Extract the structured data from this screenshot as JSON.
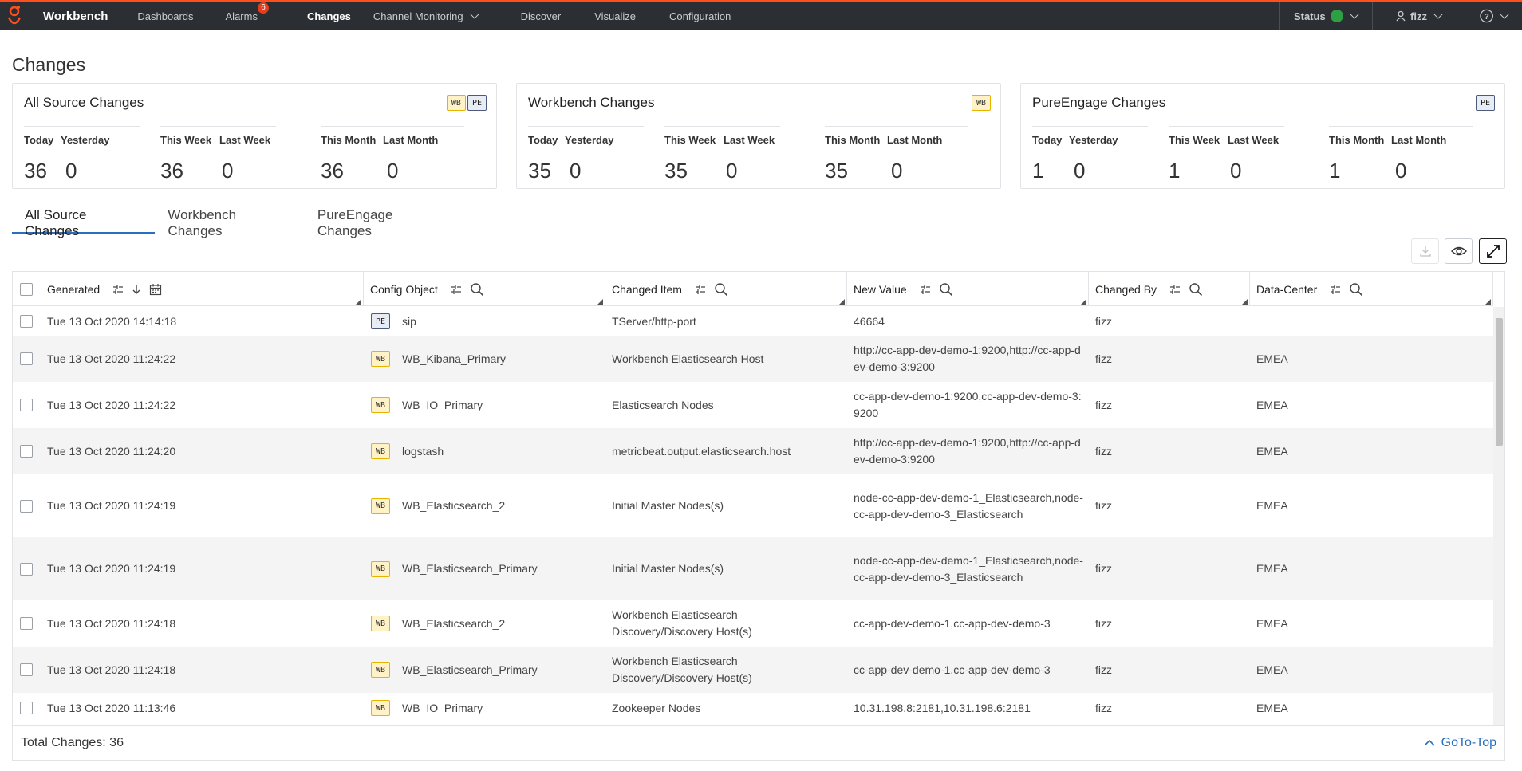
{
  "nav": {
    "brand": "Workbench",
    "items": [
      {
        "label": "Dashboards"
      },
      {
        "label": "Alarms",
        "badge": "6"
      },
      {
        "label": "Changes",
        "active": true
      },
      {
        "label": "Channel Monitoring",
        "dropdown": true
      },
      {
        "label": "Discover"
      },
      {
        "label": "Visualize"
      },
      {
        "label": "Configuration"
      }
    ],
    "status_label": "Status",
    "status_color": "#2ea043",
    "user": "fizz"
  },
  "page_title": "Changes",
  "cards": [
    {
      "title": "All Source Changes",
      "badges": [
        "WB",
        "PE"
      ],
      "today_label": "Today",
      "yesterday_label": "Yesterday",
      "today": "36",
      "yesterday": "0",
      "this_week_label": "This Week",
      "last_week_label": "Last Week",
      "this_week": "36",
      "last_week": "0",
      "this_month_label": "This Month",
      "last_month_label": "Last Month",
      "this_month": "36",
      "last_month": "0"
    },
    {
      "title": "Workbench Changes",
      "badges": [
        "WB"
      ],
      "today_label": "Today",
      "yesterday_label": "Yesterday",
      "today": "35",
      "yesterday": "0",
      "this_week_label": "This Week",
      "last_week_label": "Last Week",
      "this_week": "35",
      "last_week": "0",
      "this_month_label": "This Month",
      "last_month_label": "Last Month",
      "this_month": "35",
      "last_month": "0"
    },
    {
      "title": "PureEngage Changes",
      "badges": [
        "PE"
      ],
      "today_label": "Today",
      "yesterday_label": "Yesterday",
      "today": "1",
      "yesterday": "0",
      "this_week_label": "This Week",
      "last_week_label": "Last Week",
      "this_week": "1",
      "last_week": "0",
      "this_month_label": "This Month",
      "last_month_label": "Last Month",
      "this_month": "1",
      "last_month": "0"
    }
  ],
  "tabs": [
    {
      "label": "All Source Changes",
      "active": true
    },
    {
      "label": "Workbench Changes"
    },
    {
      "label": "PureEngage Changes"
    }
  ],
  "table": {
    "columns": [
      "Generated",
      "Config Object",
      "Changed Item",
      "New Value",
      "Changed By",
      "Data-Center"
    ],
    "rows": [
      {
        "generated": "Tue 13 Oct 2020 14:14:18",
        "source": "PE",
        "object": "sip",
        "item": "TServer/http-port",
        "value": "46664",
        "by": "fizz",
        "dc": ""
      },
      {
        "generated": "Tue 13 Oct 2020 11:24:22",
        "source": "WB",
        "object": "WB_Kibana_Primary",
        "item": "Workbench Elasticsearch Host",
        "value": "http://cc-app-dev-demo-1:9200,http://cc-app-dev-demo-3:9200",
        "by": "fizz",
        "dc": "EMEA"
      },
      {
        "generated": "Tue 13 Oct 2020 11:24:22",
        "source": "WB",
        "object": "WB_IO_Primary",
        "item": "Elasticsearch Nodes",
        "value": "cc-app-dev-demo-1:9200,cc-app-dev-demo-3:9200",
        "by": "fizz",
        "dc": "EMEA"
      },
      {
        "generated": "Tue 13 Oct 2020 11:24:20",
        "source": "WB",
        "object": "logstash",
        "item": "metricbeat.output.elasticsearch.host",
        "value": "http://cc-app-dev-demo-1:9200,http://cc-app-dev-demo-3:9200",
        "by": "fizz",
        "dc": "EMEA"
      },
      {
        "generated": "Tue 13 Oct 2020 11:24:19",
        "source": "WB",
        "object": "WB_Elasticsearch_2",
        "item": "Initial Master Nodes(s)",
        "value": "node-cc-app-dev-demo-1_Elasticsearch,node-cc-app-dev-demo-3_Elasticsearch",
        "by": "fizz",
        "dc": "EMEA"
      },
      {
        "generated": "Tue 13 Oct 2020 11:24:19",
        "source": "WB",
        "object": "WB_Elasticsearch_Primary",
        "item": "Initial Master Nodes(s)",
        "value": "node-cc-app-dev-demo-1_Elasticsearch,node-cc-app-dev-demo-3_Elasticsearch",
        "by": "fizz",
        "dc": "EMEA"
      },
      {
        "generated": "Tue 13 Oct 2020 11:24:18",
        "source": "WB",
        "object": "WB_Elasticsearch_2",
        "item": "Workbench Elasticsearch Discovery/Discovery Host(s)",
        "value": "cc-app-dev-demo-1,cc-app-dev-demo-3",
        "by": "fizz",
        "dc": "EMEA"
      },
      {
        "generated": "Tue 13 Oct 2020 11:24:18",
        "source": "WB",
        "object": "WB_Elasticsearch_Primary",
        "item": "Workbench Elasticsearch Discovery/Discovery Host(s)",
        "value": "cc-app-dev-demo-1,cc-app-dev-demo-3",
        "by": "fizz",
        "dc": "EMEA"
      },
      {
        "generated": "Tue 13 Oct 2020 11:13:46",
        "source": "WB",
        "object": "WB_IO_Primary",
        "item": "Zookeeper Nodes",
        "value": "10.31.198.8:2181,10.31.198.6:2181",
        "by": "fizz",
        "dc": "EMEA"
      }
    ]
  },
  "footer": {
    "total_label": "Total Changes: 36",
    "goto_label": "GoTo-Top"
  }
}
